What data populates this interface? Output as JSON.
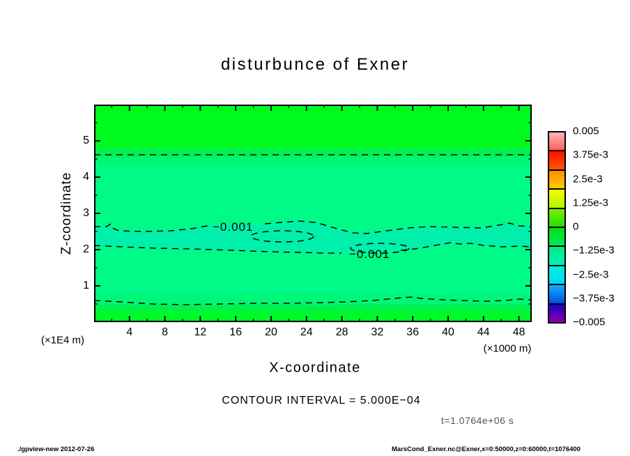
{
  "title": "disturbunce of Exner",
  "axes": {
    "x_title": "X-coordinate",
    "y_title": "Z-coordinate",
    "x_unit_label": "(×1000 m)",
    "y_unit_label": "(×1E4 m)",
    "x_ticks": [
      4,
      8,
      12,
      16,
      20,
      24,
      28,
      32,
      36,
      40,
      44,
      48
    ],
    "y_ticks": [
      1,
      2,
      3,
      4,
      5
    ]
  },
  "annotations": {
    "contour_interval": "CONTOUR INTERVAL = 5.000E−04",
    "time": "t=1.0764e+06 s"
  },
  "footer": {
    "left": "./gpview-new  2012-07-26",
    "right": "MarsCond_Exner.nc@Exner,x=0:50000,z=0:60000,t=1076400"
  },
  "colorbar": {
    "labels": [
      "0.005",
      "3.75e-3",
      "2.5e-3",
      "1.25e-3",
      "0",
      "−1.25e-3",
      "−2.5e-3",
      "−3.75e-3",
      "−0.005"
    ],
    "boxes": [
      [
        "#ffb4b4",
        "#ff6060"
      ],
      [
        "#ff0f00",
        "#ff5700"
      ],
      [
        "#ff8e00",
        "#ffcb00"
      ],
      [
        "#f8fd00",
        "#b0f500"
      ],
      [
        "#7eee00",
        "#1edf00"
      ],
      [
        "#00e20e",
        "#00e75e"
      ],
      [
        "#00ec86",
        "#00f0b2"
      ],
      [
        "#00f2d8",
        "#00d8f4"
      ],
      [
        "#16aef6",
        "#004ee2"
      ],
      [
        "#1a00c8",
        "#8c00a4"
      ]
    ]
  },
  "chart_data": {
    "type": "filled_contour",
    "title": "disturbunce of Exner",
    "xlabel": "X-coordinate",
    "ylabel": "Z-coordinate",
    "x_range_units": [
      0,
      50
    ],
    "x_unit": "×1000 m",
    "z_range_units": [
      0,
      6
    ],
    "z_unit": "×1E4 m",
    "contour_interval": 0.0005,
    "colorbar_min": -0.005,
    "colorbar_max": 0.005,
    "dashed_contours_z": [
      4.6,
      2.62,
      2.06,
      0.56
    ],
    "contour_labels": [
      {
        "text": "−0.001",
        "value": -0.001,
        "x_units": 16.2,
        "z_units": 2.62
      },
      {
        "text": "−0.001",
        "value": -0.001,
        "x_units": 31.6,
        "z_units": 1.92
      }
    ],
    "bands": [
      {
        "z": [
          4.81,
          6.0
        ],
        "color": "#00fa1e",
        "approx_value": "≈ 0"
      },
      {
        "z": [
          4.56,
          4.81
        ],
        "color": "#00f04f",
        "approx_value": "≈ −2.5e-4"
      },
      {
        "z": [
          4.31,
          4.56
        ],
        "color": "#00f677",
        "approx_value": "≈ −5e-4"
      },
      {
        "z": [
          0.77,
          4.31
        ],
        "color": "#00fa87",
        "approx_value": "−5e-4 to −1e-3"
      },
      {
        "z": [
          0.48,
          0.77
        ],
        "color": "#00f677",
        "approx_value": "≈ −5e-4"
      },
      {
        "z": [
          0.31,
          0.48
        ],
        "color": "#00f04f",
        "approx_value": "≈ −2.5e-4"
      },
      {
        "z": [
          0.0,
          0.31
        ],
        "color": "#00fa28",
        "approx_value": "≈ 0"
      }
    ],
    "teal_band": {
      "z": [
        2.06,
        2.62
      ],
      "color": "#00f0ac",
      "approx_value": "−1e-3 to −1.5e-3"
    }
  }
}
